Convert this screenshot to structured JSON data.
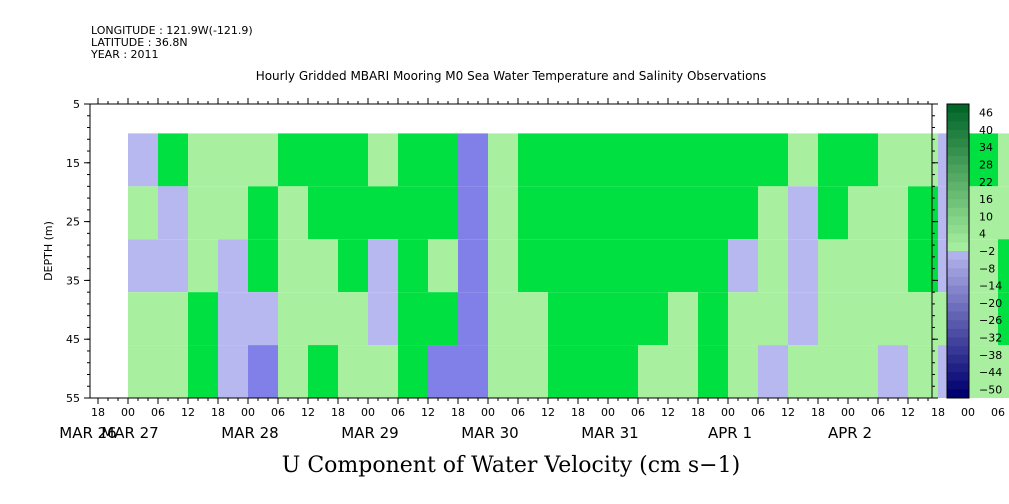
{
  "header": {
    "longitude": "LONGITUDE : 121.9W(-121.9)",
    "latitude": "LATITUDE : 36.8N",
    "year": "YEAR : 2011"
  },
  "chart_data": {
    "type": "heatmap",
    "title": "Hourly Gridded MBARI Mooring M0 Sea Water Temperature and Salinity Observations",
    "footer_title": "U Component of Water Velocity (cm s−1)",
    "ylabel": "DEPTH (m)",
    "y_inverted": true,
    "ylim": [
      5,
      55
    ],
    "y_ticks": [
      5,
      15,
      25,
      35,
      45,
      55
    ],
    "data_depth_range": [
      10,
      55
    ],
    "x_hour_labels": [
      "18",
      "00",
      "06",
      "12",
      "18",
      "00",
      "06",
      "12",
      "18",
      "00",
      "06",
      "12",
      "18",
      "00",
      "06",
      "12",
      "18",
      "00",
      "06",
      "12",
      "18",
      "00",
      "06",
      "12",
      "18",
      "00",
      "06",
      "12",
      "18",
      "00",
      "06",
      "12"
    ],
    "x_date_labels": [
      "MAR 26",
      "MAR 27",
      "MAR 28",
      "MAR 29",
      "MAR 30",
      "MAR 31",
      "APR  1",
      "APR  2"
    ],
    "colorbar": {
      "labels": [
        "46",
        "40",
        "34",
        "28",
        "22",
        "16",
        "10",
        "4",
        "−2",
        "−8",
        "−14",
        "−20",
        "−26",
        "−32",
        "−38",
        "−44",
        "−50"
      ],
      "levels_top_to_bottom": [
        49,
        46,
        43,
        40,
        37,
        34,
        31,
        28,
        25,
        22,
        19,
        16,
        13,
        10,
        7,
        4,
        1,
        -2,
        -5,
        -8,
        -11,
        -14,
        -17,
        -20,
        -23,
        -26,
        -29,
        -32,
        -35,
        -38,
        -41,
        -44,
        -47,
        -50
      ]
    },
    "colors": {
      "positive_strong": "#00e040",
      "positive_weak": "#a8f0a0",
      "negative_weak": "#b8b8f0",
      "negative_strong": "#8080e8"
    },
    "columns": [
      {
        "hour": 0,
        "values": [
          -6,
          5,
          -4,
          8,
          7
        ]
      },
      {
        "hour": 6,
        "values": [
          12,
          -8,
          -3,
          10,
          4
        ]
      },
      {
        "hour": 12,
        "values": [
          10,
          9,
          8,
          12,
          14
        ]
      },
      {
        "hour": 18,
        "values": [
          6,
          4,
          -3,
          -8,
          -4
        ]
      },
      {
        "hour": 24,
        "values": [
          10,
          12,
          14,
          -8,
          -10
        ]
      },
      {
        "hour": 30,
        "values": [
          14,
          11,
          10,
          8,
          9
        ]
      },
      {
        "hour": 36,
        "values": [
          16,
          14,
          11,
          9,
          12
        ]
      },
      {
        "hour": 42,
        "values": [
          18,
          15,
          12,
          11,
          4
        ]
      },
      {
        "hour": 48,
        "values": [
          10,
          14,
          -4,
          -8,
          6
        ]
      },
      {
        "hour": 54,
        "values": [
          16,
          14,
          12,
          13,
          15
        ]
      },
      {
        "hour": 60,
        "values": [
          14,
          12,
          10,
          12,
          -9
        ]
      },
      {
        "hour": 66,
        "values": [
          -10,
          -9,
          -12,
          -10,
          -14
        ]
      },
      {
        "hour": 72,
        "values": [
          8,
          10,
          9,
          4,
          3
        ]
      },
      {
        "hour": 78,
        "values": [
          12,
          14,
          12,
          10,
          8
        ]
      },
      {
        "hour": 84,
        "values": [
          18,
          20,
          18,
          14,
          16
        ]
      },
      {
        "hour": 90,
        "values": [
          22,
          24,
          22,
          18,
          15
        ]
      },
      {
        "hour": 96,
        "values": [
          20,
          18,
          16,
          14,
          12
        ]
      },
      {
        "hour": 102,
        "values": [
          18,
          16,
          14,
          12,
          10
        ]
      },
      {
        "hour": 108,
        "values": [
          16,
          14,
          12,
          10,
          8
        ]
      },
      {
        "hour": 114,
        "values": [
          20,
          18,
          16,
          14,
          12
        ]
      },
      {
        "hour": 120,
        "values": [
          14,
          12,
          -4,
          8,
          10
        ]
      },
      {
        "hour": 126,
        "values": [
          12,
          10,
          6,
          4,
          -4
        ]
      },
      {
        "hour": 132,
        "values": [
          10,
          -6,
          -8,
          -4,
          4
        ]
      },
      {
        "hour": 138,
        "values": [
          14,
          12,
          10,
          8,
          6
        ]
      },
      {
        "hour": 144,
        "values": [
          12,
          10,
          8,
          6,
          4
        ]
      },
      {
        "hour": 150,
        "values": [
          8,
          6,
          4,
          2,
          -6
        ]
      },
      {
        "hour": 156,
        "values": [
          10,
          12,
          14,
          10,
          8
        ]
      },
      {
        "hour": 162,
        "values": [
          -6,
          -4,
          -8,
          4,
          -6
        ]
      },
      {
        "hour": 168,
        "values": [
          12,
          10,
          8,
          4,
          2
        ]
      },
      {
        "hour": 174,
        "values": [
          8,
          10,
          12,
          14,
          10
        ]
      },
      {
        "hour": 180,
        "values": [
          -4,
          4,
          6,
          8,
          4
        ]
      },
      {
        "hour": 186,
        "values": [
          10,
          12,
          8,
          6,
          4
        ]
      },
      {
        "hour": 192,
        "values": [
          6,
          8,
          10,
          12,
          10
        ]
      },
      {
        "hour": 198,
        "values": [
          8,
          4,
          -4,
          -6,
          -8
        ]
      }
    ]
  }
}
